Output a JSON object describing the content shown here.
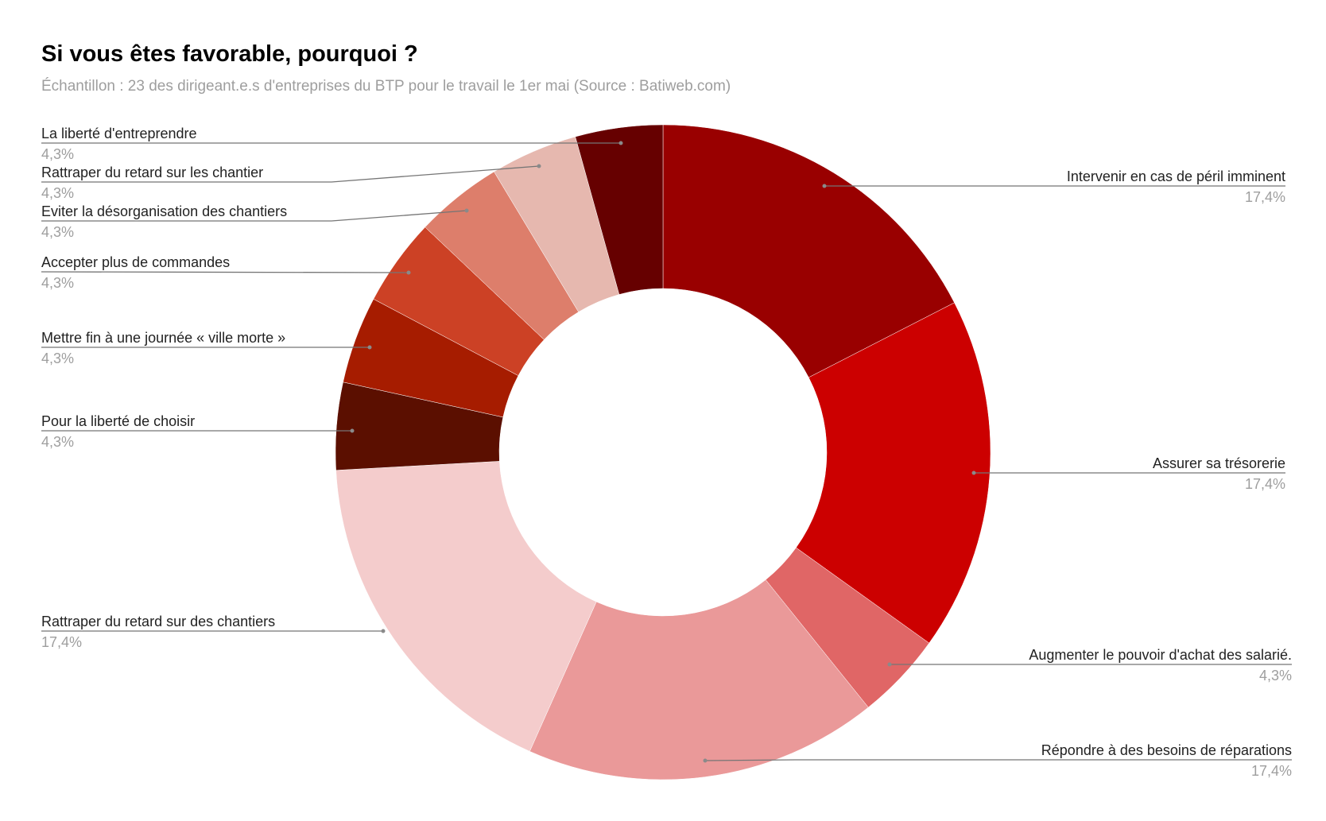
{
  "header": {
    "title": "Si vous êtes favorable, pourquoi ?",
    "subtitle": "Échantillon : 23 des dirigeant.e.s d'entreprises du BTP pour le travail le 1er mai (Source : Batiweb.com)"
  },
  "chart_data": {
    "type": "pie",
    "variant": "donut",
    "title": "Si vous êtes favorable, pourquoi ?",
    "subtitle": "Échantillon : 23 des dirigeant.e.s d'entreprises du BTP pour le travail le 1er mai (Source : Batiweb.com)",
    "start_angle": "12 o'clock, clockwise",
    "hole_ratio": 0.5,
    "legend_position": "labeled (leader lines)",
    "slices": [
      {
        "label": "Intervenir en cas de péril imminent",
        "value": 17.4,
        "display": "17,4%",
        "color": "#990000"
      },
      {
        "label": "Assurer sa trésorerie",
        "value": 17.4,
        "display": "17,4%",
        "color": "#cc0000"
      },
      {
        "label": "Augmenter le pouvoir d'achat des salarié.",
        "value": 4.3,
        "display": "4,3%",
        "color": "#e06666"
      },
      {
        "label": "Répondre à des besoins de réparations",
        "value": 17.4,
        "display": "17,4%",
        "color": "#ea9999"
      },
      {
        "label": "Rattraper du retard sur des chantiers",
        "value": 17.4,
        "display": "17,4%",
        "color": "#f4cccc"
      },
      {
        "label": "Pour la liberté de choisir",
        "value": 4.3,
        "display": "4,3%",
        "color": "#5b0f00"
      },
      {
        "label": "Mettre fin à une journée « ville morte »",
        "value": 4.3,
        "display": "4,3%",
        "color": "#a61c00"
      },
      {
        "label": "Accepter plus de commandes",
        "value": 4.3,
        "display": "4,3%",
        "color": "#cc4125"
      },
      {
        "label": "Eviter la désorganisation des chantiers",
        "value": 4.3,
        "display": "4,3%",
        "color": "#dd7e6b"
      },
      {
        "label": "Rattraper du retard sur les chantier",
        "value": 4.3,
        "display": "4,3%",
        "color": "#e6b8af"
      },
      {
        "label": "La liberté d'entreprendre",
        "value": 4.3,
        "display": "4,3%",
        "color": "#660000"
      }
    ]
  }
}
